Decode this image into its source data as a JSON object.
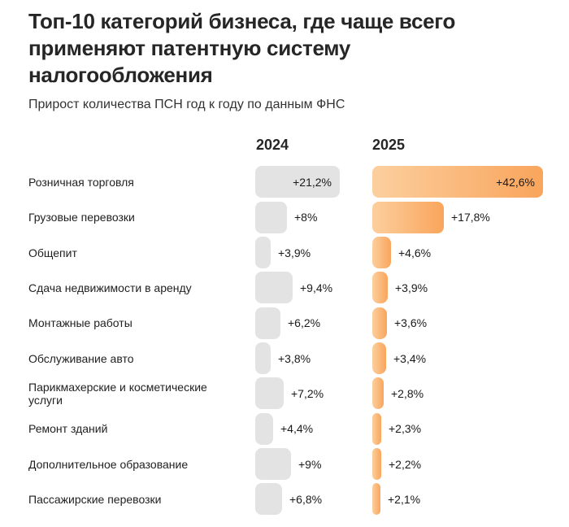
{
  "header": {
    "title": "Топ-10 категорий бизнеса, где чаще всего применяют патентную систему налогообложения",
    "subtitle": "Прирост количества ПСН год к году по данным ФНС"
  },
  "columns": [
    {
      "label": "2024"
    },
    {
      "label": "2025"
    }
  ],
  "colors": {
    "bar_2024": "#e3e3e3",
    "bar_2025_gradient_from": "#fccf9e",
    "bar_2025_gradient_to": "#f9a55c",
    "text": "#262626"
  },
  "chart_data": {
    "type": "bar",
    "orientation": "horizontal",
    "title": "Топ-10 категорий бизнеса, где чаще всего применяют патентную систему налогообложения",
    "subtitle": "Прирост количества ПСН год к году по данным ФНС",
    "value_unit": "%",
    "xlim": [
      0,
      45
    ],
    "grid": false,
    "legend_position": "top",
    "categories": [
      "Розничная торговля",
      "Грузовые перевозки",
      "Общепит",
      "Сдача недвижимости в аренду",
      "Монтажные работы",
      "Обслуживание авто",
      "Парикмахерские и косметические услуги",
      "Ремонт зданий",
      "Дополнительное образование",
      "Пассажирские перевозки"
    ],
    "series": [
      {
        "name": "2024",
        "values": [
          21.2,
          8,
          3.9,
          9.4,
          6.2,
          3.8,
          7.2,
          4.4,
          9,
          6.8
        ],
        "labels": [
          "+21,2%",
          "+8%",
          "+3,9%",
          "+9,4%",
          "+6,2%",
          "+3,8%",
          "+7,2%",
          "+4,4%",
          "+9%",
          "+6,8%"
        ],
        "color": "#e3e3e3"
      },
      {
        "name": "2025",
        "values": [
          42.6,
          17.8,
          4.6,
          3.9,
          3.6,
          3.4,
          2.8,
          2.3,
          2.2,
          2.1
        ],
        "labels": [
          "+42,6%",
          "+17,8%",
          "+4,6%",
          "+3,9%",
          "+3,6%",
          "+3,4%",
          "+2,8%",
          "+2,3%",
          "+2,2%",
          "+2,1%"
        ],
        "color_gradient": [
          "#fccf9e",
          "#f9a55c"
        ]
      }
    ]
  }
}
